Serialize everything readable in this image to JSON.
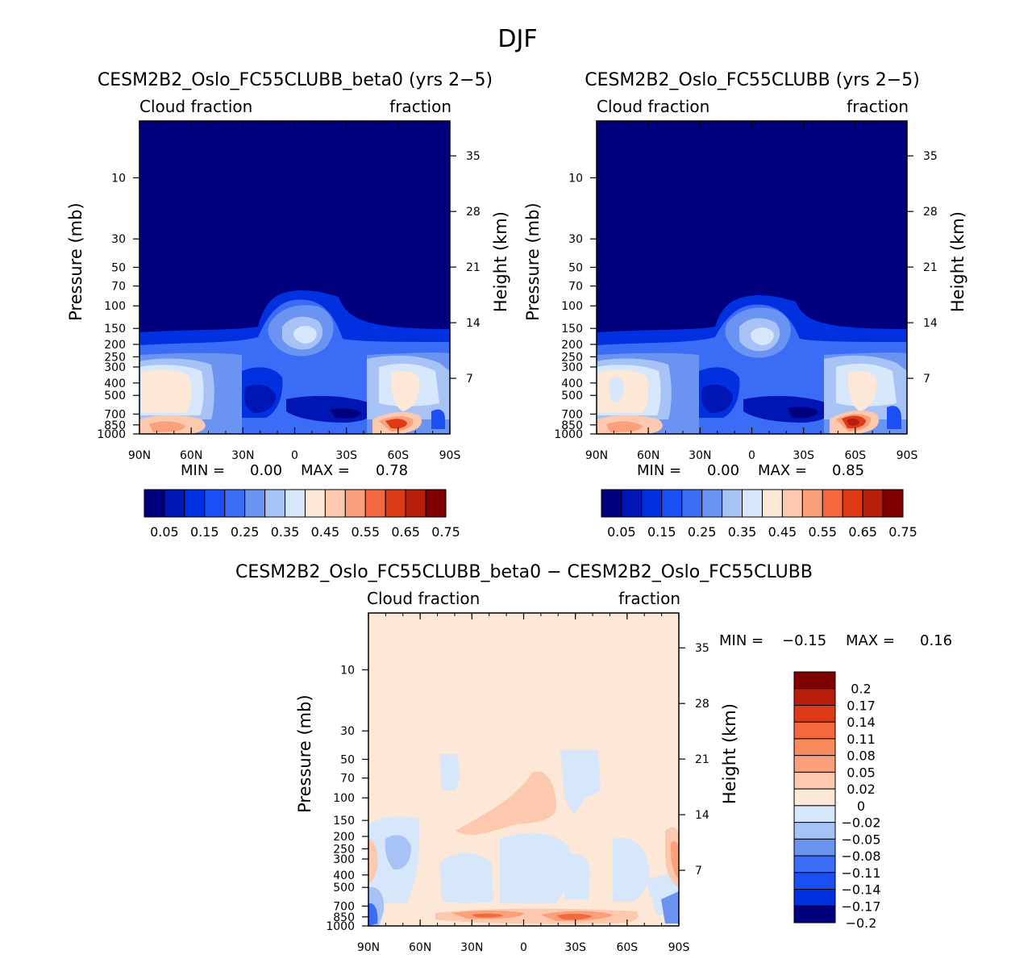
{
  "page_title": "DJF",
  "chart_data": [
    {
      "type": "heatmap",
      "title": "CESM2B2_Oslo_FC55CLUBB_beta0 (yrs 2−5)",
      "left_label": "Cloud fraction",
      "right_label": "fraction",
      "xlabel": "",
      "ylabel": "Pressure (mb)",
      "ylabel_right": "Height (km)",
      "x_ticks": [
        "90N",
        "60N",
        "30N",
        "0",
        "30S",
        "60S",
        "90S"
      ],
      "p_ticks": [
        "10",
        "30",
        "50",
        "70",
        "100",
        "150",
        "200",
        "250",
        "300",
        "400",
        "500",
        "700",
        "850",
        "1000"
      ],
      "h_ticks": [
        "35",
        "28",
        "21",
        "14",
        "7"
      ],
      "min_label": "MIN =",
      "min_value": "0.00",
      "max_label": "MAX =",
      "max_value": "0.78",
      "colorbar_levels": [
        0.05,
        0.1,
        0.15,
        0.2,
        0.25,
        0.3,
        0.35,
        0.4,
        0.45,
        0.5,
        0.55,
        0.6,
        0.65,
        0.7,
        0.75
      ],
      "colorbar_labels": [
        "0.05",
        "0.15",
        "0.25",
        "0.35",
        "0.45",
        "0.55",
        "0.65",
        "0.75"
      ],
      "colors": [
        "#00007f",
        "#0016b4",
        "#0030e0",
        "#1a4ff5",
        "#3a6cf5",
        "#6b94f2",
        "#a7c3f6",
        "#d6e6fb",
        "#fde8d8",
        "#fcc8ae",
        "#faa07a",
        "#f4683f",
        "#dd3b16",
        "#b71f0a",
        "#7f0000"
      ]
    },
    {
      "type": "heatmap",
      "title": "CESM2B2_Oslo_FC55CLUBB (yrs 2−5)",
      "left_label": "Cloud fraction",
      "right_label": "fraction",
      "xlabel": "",
      "ylabel": "Pressure (mb)",
      "ylabel_right": "Height (km)",
      "x_ticks": [
        "90N",
        "60N",
        "30N",
        "0",
        "30S",
        "60S",
        "90S"
      ],
      "p_ticks": [
        "10",
        "30",
        "50",
        "70",
        "100",
        "150",
        "200",
        "250",
        "300",
        "400",
        "500",
        "700",
        "850",
        "1000"
      ],
      "h_ticks": [
        "35",
        "28",
        "21",
        "14",
        "7"
      ],
      "min_label": "MIN =",
      "min_value": "0.00",
      "max_label": "MAX =",
      "max_value": "0.85",
      "colorbar_levels": [
        0.05,
        0.1,
        0.15,
        0.2,
        0.25,
        0.3,
        0.35,
        0.4,
        0.45,
        0.5,
        0.55,
        0.6,
        0.65,
        0.7,
        0.75
      ],
      "colorbar_labels": [
        "0.05",
        "0.15",
        "0.25",
        "0.35",
        "0.45",
        "0.55",
        "0.65",
        "0.75"
      ],
      "colors": [
        "#00007f",
        "#0016b4",
        "#0030e0",
        "#1a4ff5",
        "#3a6cf5",
        "#6b94f2",
        "#a7c3f6",
        "#d6e6fb",
        "#fde8d8",
        "#fcc8ae",
        "#faa07a",
        "#f4683f",
        "#dd3b16",
        "#b71f0a",
        "#7f0000"
      ]
    },
    {
      "type": "heatmap",
      "title": "CESM2B2_Oslo_FC55CLUBB_beta0 − CESM2B2_Oslo_FC55CLUBB",
      "left_label": "Cloud fraction",
      "right_label": "fraction",
      "xlabel": "",
      "ylabel": "Pressure (mb)",
      "ylabel_right": "Height (km)",
      "x_ticks": [
        "90N",
        "60N",
        "30N",
        "0",
        "30S",
        "60S",
        "90S"
      ],
      "p_ticks": [
        "10",
        "30",
        "50",
        "70",
        "100",
        "150",
        "200",
        "250",
        "300",
        "400",
        "500",
        "700",
        "850",
        "1000"
      ],
      "h_ticks": [
        "35",
        "28",
        "21",
        "14",
        "7"
      ],
      "min_label": "MIN =",
      "min_value": "−0.15",
      "max_label": "MAX =",
      "max_value": "0.16",
      "colorbar_levels": [
        -0.2,
        -0.17,
        -0.14,
        -0.11,
        -0.08,
        -0.05,
        -0.02,
        0,
        0.02,
        0.05,
        0.08,
        0.11,
        0.14,
        0.17,
        0.2
      ],
      "colorbar_labels": [
        "0.2",
        "0.17",
        "0.14",
        "0.11",
        "0.08",
        "0.05",
        "0.02",
        "0",
        "−0.02",
        "−0.05",
        "−0.08",
        "−0.11",
        "−0.14",
        "−0.17",
        "−0.2"
      ],
      "colors": [
        "#7f0000",
        "#b71f0a",
        "#dd3b16",
        "#f4683f",
        "#f98a5c",
        "#faa07a",
        "#fcc8ae",
        "#fde8d8",
        "#d6e6fb",
        "#a7c3f6",
        "#6b94f2",
        "#3a6cf5",
        "#1a4ff5",
        "#0030e0",
        "#00007f"
      ]
    }
  ]
}
